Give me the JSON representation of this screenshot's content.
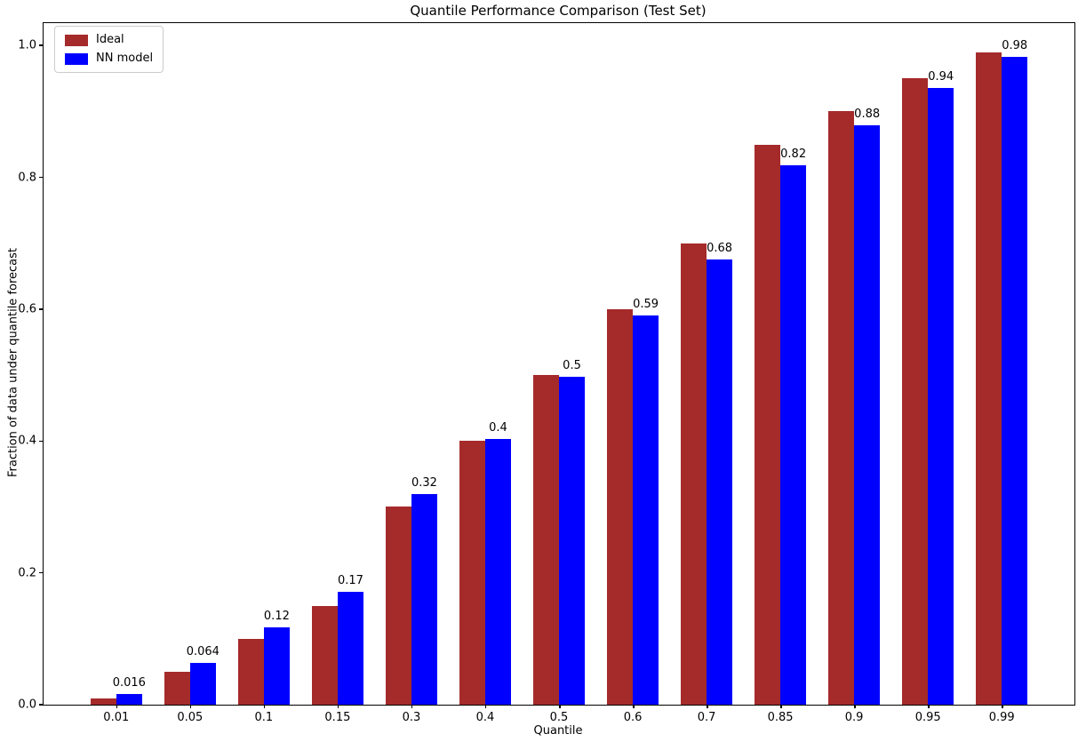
{
  "chart_data": {
    "type": "bar",
    "title": "Quantile Performance Comparison (Test Set)",
    "xlabel": "Quantile",
    "ylabel": "Fraction of data under quantile forecast",
    "categories": [
      "0.01",
      "0.05",
      "0.1",
      "0.15",
      "0.3",
      "0.4",
      "0.5",
      "0.6",
      "0.7",
      "0.85",
      "0.9",
      "0.95",
      "0.99"
    ],
    "series": [
      {
        "name": "Ideal",
        "color": "#a52a2a",
        "values": [
          0.01,
          0.05,
          0.1,
          0.15,
          0.3,
          0.4,
          0.5,
          0.6,
          0.7,
          0.85,
          0.9,
          0.95,
          0.99
        ]
      },
      {
        "name": "NN model",
        "color": "#0000ff",
        "values": [
          0.016,
          0.064,
          0.117,
          0.171,
          0.32,
          0.403,
          0.497,
          0.591,
          0.676,
          0.818,
          0.879,
          0.935,
          0.983
        ],
        "bar_labels": [
          "0.016",
          "0.064",
          "0.12",
          "0.17",
          "0.32",
          "0.4",
          "0.5",
          "0.59",
          "0.68",
          "0.82",
          "0.88",
          "0.94",
          "0.98"
        ]
      }
    ],
    "ytick_labels": [
      "0.0",
      "0.2",
      "0.4",
      "0.6",
      "0.8",
      "1.0"
    ],
    "ytick_values": [
      0.0,
      0.2,
      0.4,
      0.6,
      0.8,
      1.0
    ],
    "ylim": [
      0,
      1.034
    ],
    "bar_width_units": 0.35,
    "xlim": [
      -0.985,
      12.985
    ],
    "grid": false,
    "legend_position": "upper left",
    "frame_color": "#000000",
    "legend_border_color": "#cccccc"
  }
}
